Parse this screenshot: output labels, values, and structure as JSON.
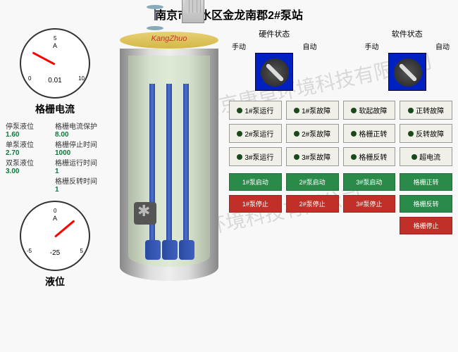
{
  "title": "南京市溧水区金龙南郡2#泵站",
  "watermark": "南京康卓环境科技有限公司",
  "tank_brand": "KangZhuo",
  "gauge1": {
    "label": "格栅电流",
    "unit": "A",
    "value": "0.01",
    "min": "0",
    "mid": "5",
    "max": "10",
    "needle_angle": -152
  },
  "gauge2": {
    "label": "液位",
    "unit": "A",
    "value": "-25",
    "min": "-5",
    "mid": "0",
    "max": "5",
    "needle_angle": -40
  },
  "params": {
    "left": [
      {
        "label": "停泵液位",
        "val": "1.60"
      },
      {
        "label": "单泵液位",
        "val": "2.70"
      },
      {
        "label": "双泵液位",
        "val": "3.00"
      }
    ],
    "right": [
      {
        "label": "格栅电流保护",
        "val": "8.00"
      },
      {
        "label": "格栅停止时间",
        "val": "1000"
      },
      {
        "label": "格栅运行时间",
        "val": "1"
      },
      {
        "label": "格栅反转时间",
        "val": "1"
      }
    ]
  },
  "status": {
    "hw": {
      "title": "硬件状态",
      "l": "手动",
      "r": "自动"
    },
    "sw": {
      "title": "软件状态",
      "l": "手动",
      "r": "自动"
    }
  },
  "status_btns": [
    "1#泵运行",
    "1#泵故障",
    "软起故障",
    "正转故障",
    "2#泵运行",
    "2#泵故障",
    "格栅正转",
    "反转故障",
    "3#泵运行",
    "3#泵故障",
    "格栅反转",
    "超电流"
  ],
  "ctrl_btns": [
    {
      "t": "1#泵启动",
      "c": "g"
    },
    {
      "t": "2#泵启动",
      "c": "g"
    },
    {
      "t": "3#泵启动",
      "c": "g"
    },
    {
      "t": "格栅正转",
      "c": "g"
    },
    {
      "t": "1#泵停止",
      "c": "r"
    },
    {
      "t": "2#泵停止",
      "c": "r"
    },
    {
      "t": "3#泵停止",
      "c": "r"
    },
    {
      "t": "格栅反转",
      "c": "g"
    },
    {
      "t": "",
      "c": "e"
    },
    {
      "t": "",
      "c": "e"
    },
    {
      "t": "",
      "c": "e"
    },
    {
      "t": "格栅停止",
      "c": "r"
    }
  ]
}
